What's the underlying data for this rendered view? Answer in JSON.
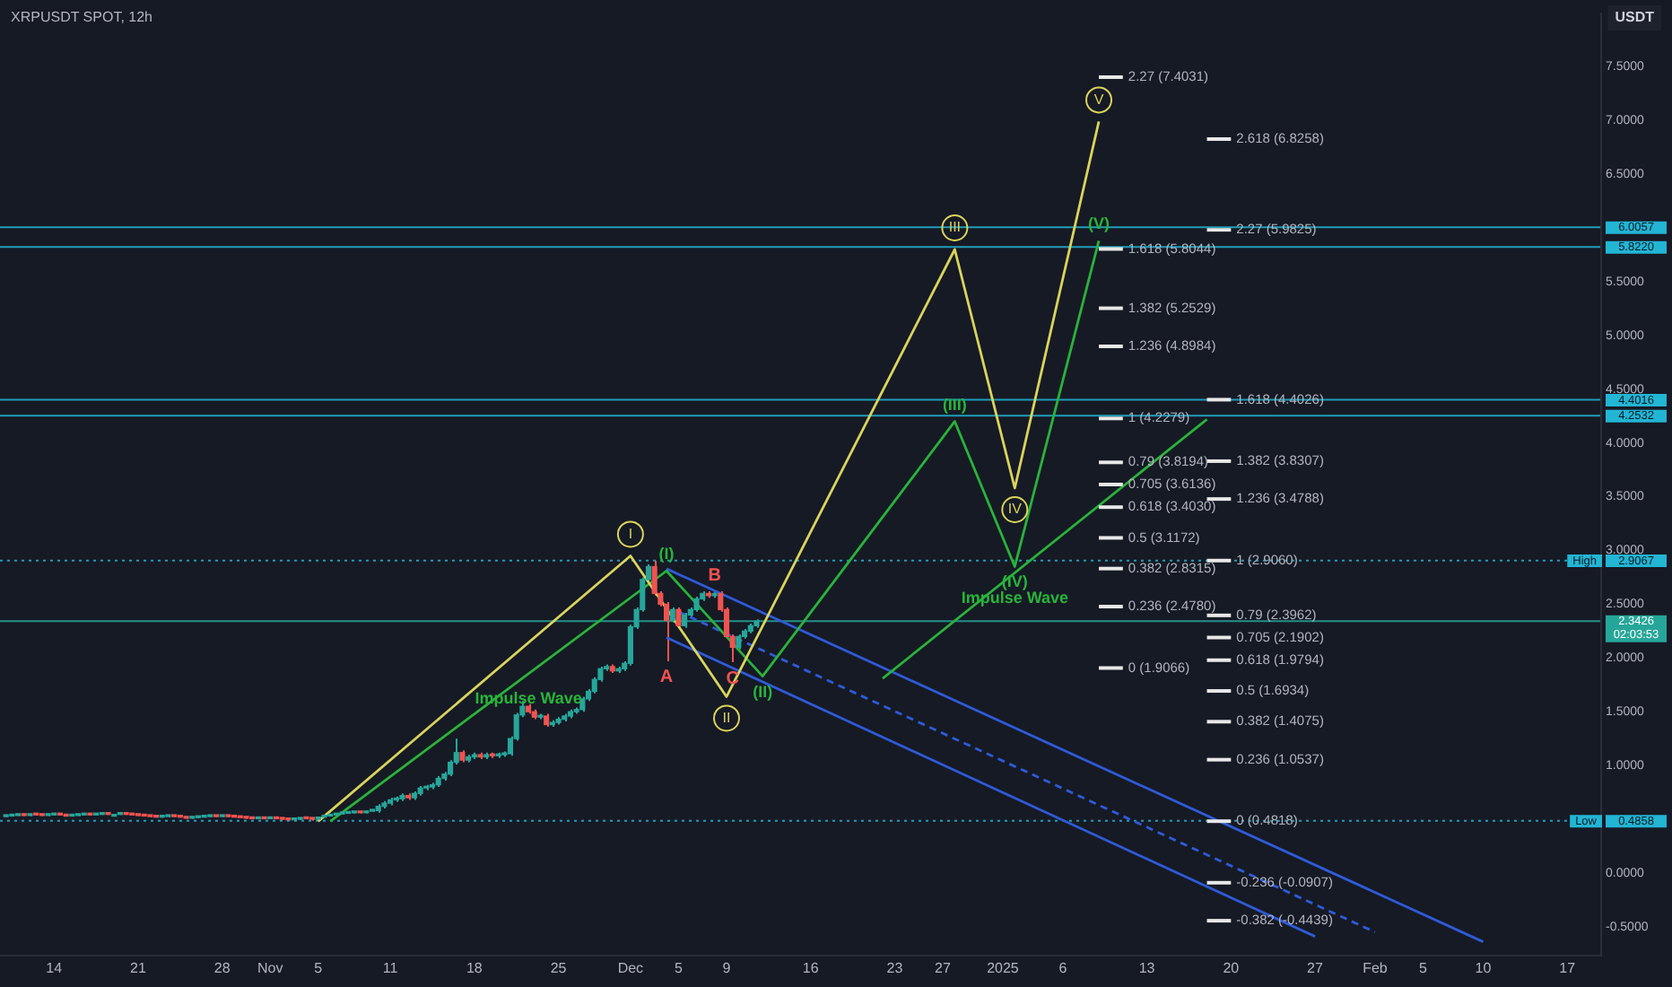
{
  "chart_data": {
    "type": "candlestick",
    "title": "XRPUSDT SPOT, 12h",
    "ylabel": "USDT",
    "x": [
      "2024-10-10T00:00",
      "2024-10-10T12:00",
      "2024-10-11T00:00",
      "2024-10-11T12:00",
      "2024-10-12T00:00",
      "2024-10-12T12:00",
      "2024-10-13T00:00",
      "2024-10-13T12:00",
      "2024-10-14T00:00",
      "2024-10-14T12:00",
      "2024-10-15T00:00",
      "2024-10-15T12:00",
      "2024-10-16T00:00",
      "2024-10-16T12:00",
      "2024-10-17T00:00",
      "2024-10-17T12:00",
      "2024-10-18T00:00",
      "2024-10-18T12:00",
      "2024-10-19T00:00",
      "2024-10-19T12:00",
      "2024-10-20T00:00",
      "2024-10-20T12:00",
      "2024-10-21T00:00",
      "2024-10-21T12:00",
      "2024-10-22T00:00",
      "2024-10-22T12:00",
      "2024-10-23T00:00",
      "2024-10-23T12:00",
      "2024-10-24T00:00",
      "2024-10-24T12:00",
      "2024-10-25T00:00",
      "2024-10-25T12:00",
      "2024-10-26T00:00",
      "2024-10-26T12:00",
      "2024-10-27T00:00",
      "2024-10-27T12:00",
      "2024-10-28T00:00",
      "2024-10-28T12:00",
      "2024-10-29T00:00",
      "2024-10-29T12:00",
      "2024-10-30T00:00",
      "2024-10-30T12:00",
      "2024-10-31T00:00",
      "2024-10-31T12:00",
      "2024-11-01T00:00",
      "2024-11-01T12:00",
      "2024-11-02T00:00",
      "2024-11-02T12:00",
      "2024-11-03T00:00",
      "2024-11-03T12:00",
      "2024-11-04T00:00",
      "2024-11-04T12:00",
      "2024-11-05T00:00",
      "2024-11-05T12:00",
      "2024-11-06T00:00",
      "2024-11-06T12:00",
      "2024-11-07T00:00",
      "2024-11-07T12:00",
      "2024-11-08T00:00",
      "2024-11-08T12:00",
      "2024-11-09T00:00",
      "2024-11-09T12:00",
      "2024-11-10T00:00",
      "2024-11-10T12:00",
      "2024-11-11T00:00",
      "2024-11-11T12:00",
      "2024-11-12T00:00",
      "2024-11-12T12:00",
      "2024-11-13T00:00",
      "2024-11-13T12:00",
      "2024-11-14T00:00",
      "2024-11-14T12:00",
      "2024-11-15T00:00",
      "2024-11-15T12:00",
      "2024-11-16T00:00",
      "2024-11-16T12:00",
      "2024-11-17T00:00",
      "2024-11-17T12:00",
      "2024-11-18T00:00",
      "2024-11-18T12:00",
      "2024-11-19T00:00",
      "2024-11-19T12:00",
      "2024-11-20T00:00",
      "2024-11-20T12:00",
      "2024-11-21T00:00",
      "2024-11-21T12:00",
      "2024-11-22T00:00",
      "2024-11-22T12:00",
      "2024-11-23T00:00",
      "2024-11-23T12:00",
      "2024-11-24T00:00",
      "2024-11-24T12:00",
      "2024-11-25T00:00",
      "2024-11-25T12:00",
      "2024-11-26T00:00",
      "2024-11-26T12:00",
      "2024-11-27T00:00",
      "2024-11-27T12:00",
      "2024-11-28T00:00",
      "2024-11-28T12:00",
      "2024-11-29T00:00",
      "2024-11-29T12:00",
      "2024-11-30T00:00",
      "2024-11-30T12:00",
      "2024-12-01T00:00",
      "2024-12-01T12:00",
      "2024-12-02T00:00",
      "2024-12-02T12:00",
      "2024-12-03T00:00",
      "2024-12-03T12:00",
      "2024-12-04T00:00",
      "2024-12-04T12:00",
      "2024-12-05T00:00",
      "2024-12-05T12:00",
      "2024-12-06T00:00",
      "2024-12-06T12:00",
      "2024-12-07T00:00",
      "2024-12-07T12:00",
      "2024-12-08T00:00",
      "2024-12-08T12:00",
      "2024-12-09T00:00",
      "2024-12-09T12:00",
      "2024-12-10T00:00",
      "2024-12-10T12:00",
      "2024-12-11T00:00",
      "2024-12-11T12:00"
    ],
    "ohlc": [
      [
        0.525,
        0.535,
        0.52,
        0.53
      ],
      [
        0.53,
        0.54,
        0.525,
        0.535
      ],
      [
        0.535,
        0.545,
        0.53,
        0.54
      ],
      [
        0.54,
        0.545,
        0.53,
        0.535
      ],
      [
        0.535,
        0.55,
        0.53,
        0.545
      ],
      [
        0.545,
        0.55,
        0.535,
        0.54
      ],
      [
        0.54,
        0.545,
        0.53,
        0.535
      ],
      [
        0.535,
        0.545,
        0.53,
        0.54
      ],
      [
        0.54,
        0.55,
        0.535,
        0.545
      ],
      [
        0.545,
        0.55,
        0.535,
        0.54
      ],
      [
        0.54,
        0.545,
        0.525,
        0.53
      ],
      [
        0.53,
        0.54,
        0.525,
        0.535
      ],
      [
        0.535,
        0.545,
        0.53,
        0.54
      ],
      [
        0.54,
        0.55,
        0.535,
        0.545
      ],
      [
        0.545,
        0.55,
        0.535,
        0.54
      ],
      [
        0.54,
        0.55,
        0.535,
        0.545
      ],
      [
        0.545,
        0.555,
        0.54,
        0.55
      ],
      [
        0.55,
        0.555,
        0.54,
        0.545
      ],
      [
        0.545,
        0.55,
        0.54,
        0.545
      ],
      [
        0.545,
        0.555,
        0.54,
        0.55
      ],
      [
        0.55,
        0.555,
        0.54,
        0.545
      ],
      [
        0.545,
        0.55,
        0.535,
        0.54
      ],
      [
        0.54,
        0.545,
        0.53,
        0.535
      ],
      [
        0.535,
        0.54,
        0.525,
        0.53
      ],
      [
        0.53,
        0.535,
        0.52,
        0.525
      ],
      [
        0.525,
        0.53,
        0.515,
        0.52
      ],
      [
        0.52,
        0.53,
        0.515,
        0.525
      ],
      [
        0.525,
        0.535,
        0.52,
        0.53
      ],
      [
        0.53,
        0.535,
        0.52,
        0.525
      ],
      [
        0.525,
        0.53,
        0.515,
        0.52
      ],
      [
        0.52,
        0.525,
        0.505,
        0.51
      ],
      [
        0.51,
        0.52,
        0.505,
        0.515
      ],
      [
        0.515,
        0.525,
        0.51,
        0.52
      ],
      [
        0.52,
        0.53,
        0.515,
        0.525
      ],
      [
        0.525,
        0.535,
        0.52,
        0.53
      ],
      [
        0.53,
        0.535,
        0.52,
        0.525
      ],
      [
        0.525,
        0.535,
        0.52,
        0.53
      ],
      [
        0.53,
        0.535,
        0.52,
        0.525
      ],
      [
        0.525,
        0.53,
        0.515,
        0.52
      ],
      [
        0.52,
        0.525,
        0.51,
        0.515
      ],
      [
        0.515,
        0.52,
        0.505,
        0.51
      ],
      [
        0.51,
        0.515,
        0.5,
        0.505
      ],
      [
        0.505,
        0.515,
        0.5,
        0.51
      ],
      [
        0.51,
        0.515,
        0.5,
        0.505
      ],
      [
        0.505,
        0.515,
        0.5,
        0.51
      ],
      [
        0.51,
        0.515,
        0.5,
        0.505
      ],
      [
        0.505,
        0.51,
        0.495,
        0.5
      ],
      [
        0.5,
        0.505,
        0.49,
        0.495
      ],
      [
        0.495,
        0.505,
        0.49,
        0.5
      ],
      [
        0.5,
        0.515,
        0.495,
        0.51
      ],
      [
        0.51,
        0.515,
        0.5,
        0.505
      ],
      [
        0.505,
        0.51,
        0.4858,
        0.5
      ],
      [
        0.5,
        0.525,
        0.495,
        0.52
      ],
      [
        0.52,
        0.535,
        0.515,
        0.53
      ],
      [
        0.53,
        0.545,
        0.525,
        0.54
      ],
      [
        0.54,
        0.555,
        0.535,
        0.55
      ],
      [
        0.55,
        0.56,
        0.545,
        0.555
      ],
      [
        0.555,
        0.565,
        0.55,
        0.56
      ],
      [
        0.56,
        0.57,
        0.555,
        0.565
      ],
      [
        0.565,
        0.57,
        0.555,
        0.56
      ],
      [
        0.56,
        0.58,
        0.555,
        0.575
      ],
      [
        0.575,
        0.585,
        0.57,
        0.58
      ],
      [
        0.58,
        0.64,
        0.56,
        0.62
      ],
      [
        0.62,
        0.67,
        0.6,
        0.65
      ],
      [
        0.65,
        0.7,
        0.63,
        0.68
      ],
      [
        0.68,
        0.71,
        0.66,
        0.69
      ],
      [
        0.69,
        0.74,
        0.67,
        0.72
      ],
      [
        0.72,
        0.74,
        0.68,
        0.7
      ],
      [
        0.7,
        0.76,
        0.68,
        0.74
      ],
      [
        0.74,
        0.81,
        0.72,
        0.79
      ],
      [
        0.79,
        0.82,
        0.77,
        0.8
      ],
      [
        0.8,
        0.84,
        0.78,
        0.82
      ],
      [
        0.82,
        0.9,
        0.8,
        0.88
      ],
      [
        0.88,
        0.94,
        0.86,
        0.92
      ],
      [
        0.92,
        1.05,
        0.9,
        1.03
      ],
      [
        1.03,
        1.25,
        1.01,
        1.12
      ],
      [
        1.12,
        1.14,
        1.03,
        1.05
      ],
      [
        1.05,
        1.1,
        1.03,
        1.08
      ],
      [
        1.08,
        1.12,
        1.06,
        1.1
      ],
      [
        1.1,
        1.12,
        1.06,
        1.08
      ],
      [
        1.08,
        1.12,
        1.06,
        1.1
      ],
      [
        1.1,
        1.12,
        1.07,
        1.09
      ],
      [
        1.09,
        1.12,
        1.07,
        1.1
      ],
      [
        1.1,
        1.13,
        1.08,
        1.11
      ],
      [
        1.11,
        1.27,
        1.09,
        1.25
      ],
      [
        1.25,
        1.49,
        1.23,
        1.47
      ],
      [
        1.47,
        1.6,
        1.45,
        1.55
      ],
      [
        1.55,
        1.57,
        1.48,
        1.5
      ],
      [
        1.5,
        1.52,
        1.43,
        1.45
      ],
      [
        1.45,
        1.48,
        1.43,
        1.46
      ],
      [
        1.46,
        1.48,
        1.36,
        1.38
      ],
      [
        1.38,
        1.42,
        1.36,
        1.4
      ],
      [
        1.4,
        1.45,
        1.38,
        1.43
      ],
      [
        1.43,
        1.48,
        1.41,
        1.46
      ],
      [
        1.46,
        1.52,
        1.44,
        1.5
      ],
      [
        1.5,
        1.54,
        1.48,
        1.52
      ],
      [
        1.52,
        1.64,
        1.5,
        1.62
      ],
      [
        1.62,
        1.71,
        1.6,
        1.69
      ],
      [
        1.69,
        1.82,
        1.67,
        1.8
      ],
      [
        1.8,
        1.92,
        1.78,
        1.9
      ],
      [
        1.9,
        1.94,
        1.88,
        1.92
      ],
      [
        1.92,
        1.94,
        1.86,
        1.88
      ],
      [
        1.88,
        1.92,
        1.86,
        1.9
      ],
      [
        1.9,
        1.97,
        1.88,
        1.95
      ],
      [
        1.95,
        2.31,
        1.93,
        2.29
      ],
      [
        2.29,
        2.47,
        2.27,
        2.45
      ],
      [
        2.45,
        2.75,
        2.43,
        2.73
      ],
      [
        2.73,
        2.87,
        2.71,
        2.85
      ],
      [
        2.85,
        2.9067,
        2.58,
        2.6
      ],
      [
        2.6,
        2.62,
        2.48,
        2.5
      ],
      [
        2.5,
        2.52,
        1.97,
        2.35
      ],
      [
        2.35,
        2.47,
        2.33,
        2.45
      ],
      [
        2.45,
        2.47,
        2.28,
        2.3
      ],
      [
        2.3,
        2.42,
        2.28,
        2.4
      ],
      [
        2.4,
        2.47,
        2.38,
        2.45
      ],
      [
        2.45,
        2.57,
        2.43,
        2.55
      ],
      [
        2.55,
        2.62,
        2.53,
        2.6
      ],
      [
        2.6,
        2.62,
        2.56,
        2.58
      ],
      [
        2.58,
        2.62,
        2.56,
        2.6
      ],
      [
        2.6,
        2.62,
        2.43,
        2.45
      ],
      [
        2.45,
        2.47,
        2.18,
        2.2
      ],
      [
        2.2,
        2.22,
        1.96,
        2.1
      ],
      [
        2.1,
        2.22,
        2.08,
        2.2
      ],
      [
        2.2,
        2.27,
        2.18,
        2.25
      ],
      [
        2.25,
        2.32,
        2.23,
        2.3
      ],
      [
        2.3,
        2.36,
        2.28,
        2.3426
      ]
    ],
    "colors": [
      "#26a69a",
      "#26a69a",
      "#26a69a",
      "#ef5350",
      "#26a69a",
      "#ef5350",
      "#ef5350",
      "#26a69a",
      "#26a69a",
      "#ef5350",
      "#ef5350",
      "#26a69a",
      "#26a69a",
      "#26a69a",
      "#ef5350",
      "#26a69a",
      "#26a69a",
      "#ef5350",
      "#26a69a",
      "#26a69a",
      "#ef5350",
      "#ef5350",
      "#ef5350",
      "#ef5350",
      "#ef5350",
      "#ef5350",
      "#26a69a",
      "#26a69a",
      "#ef5350",
      "#ef5350",
      "#ef5350",
      "#26a69a",
      "#26a69a",
      "#26a69a",
      "#26a69a",
      "#ef5350",
      "#26a69a",
      "#ef5350",
      "#ef5350",
      "#ef5350",
      "#ef5350",
      "#ef5350",
      "#26a69a",
      "#ef5350",
      "#26a69a",
      "#ef5350",
      "#ef5350",
      "#ef5350",
      "#26a69a",
      "#26a69a",
      "#ef5350",
      "#ef5350",
      "#26a69a",
      "#26a69a",
      "#26a69a",
      "#26a69a",
      "#26a69a",
      "#26a69a",
      "#26a69a",
      "#ef5350",
      "#26a69a",
      "#26a69a",
      "#26a69a",
      "#26a69a",
      "#26a69a",
      "#26a69a",
      "#26a69a",
      "#ef5350",
      "#26a69a",
      "#26a69a",
      "#26a69a",
      "#26a69a",
      "#26a69a",
      "#26a69a",
      "#26a69a",
      "#26a69a",
      "#ef5350",
      "#26a69a",
      "#26a69a",
      "#ef5350",
      "#26a69a",
      "#ef5350",
      "#26a69a",
      "#26a69a",
      "#26a69a",
      "#26a69a",
      "#26a69a",
      "#ef5350",
      "#ef5350",
      "#26a69a",
      "#ef5350",
      "#26a69a",
      "#26a69a",
      "#26a69a",
      "#26a69a",
      "#26a69a",
      "#26a69a",
      "#26a69a",
      "#26a69a",
      "#26a69a",
      "#26a69a",
      "#ef5350",
      "#26a69a",
      "#26a69a",
      "#26a69a",
      "#26a69a",
      "#26a69a",
      "#26a69a",
      "#ef5350",
      "#ef5350",
      "#ef5350",
      "#26a69a",
      "#ef5350",
      "#26a69a",
      "#26a69a",
      "#26a69a",
      "#26a69a",
      "#ef5350",
      "#26a69a",
      "#ef5350",
      "#ef5350",
      "#ef5350",
      "#26a69a",
      "#26a69a",
      "#26a69a",
      "#26a69a"
    ],
    "series": [
      {
        "type": "line",
        "color": "#d9d45b",
        "x": [
          "2024-11-05",
          "2024-12-01",
          "2024-12-09",
          "2024-12-28",
          "2025-01-02",
          "2025-01-09"
        ],
        "values": [
          0.48,
          2.95,
          1.64,
          5.8,
          3.58,
          6.99
        ],
        "value_labels": [
          null,
          "I",
          "II",
          "III",
          "IV",
          "V"
        ]
      },
      {
        "type": "line",
        "color": "#29b33a",
        "x": [
          "2024-11-06",
          "2024-12-04",
          "2024-12-12",
          "2024-12-28",
          "2025-01-02",
          "2025-01-09"
        ],
        "values": [
          0.48,
          2.81,
          1.83,
          4.2,
          2.85,
          5.88
        ],
        "value_labels": [
          null,
          "(I)",
          "(II)",
          "(III)",
          "(IV)",
          "(V)"
        ]
      },
      {
        "type": "line",
        "color": "#e8e8e8",
        "x": [
          "2025-01-09",
          "2025-01-11"
        ],
        "values": [
          7.4031,
          7.4031
        ],
        "value_labels": [
          null,
          "2.27 (7.4031)"
        ]
      },
      {
        "type": "line",
        "color": "#e8e8e8",
        "x": [
          "2025-01-09",
          "2025-01-11"
        ],
        "values": [
          5.8044,
          5.8044
        ],
        "value_labels": [
          null,
          "1.618 (5.8044)"
        ]
      },
      {
        "type": "line",
        "color": "#e8e8e8",
        "x": [
          "2025-01-09",
          "2025-01-11"
        ],
        "values": [
          5.2529,
          5.2529
        ],
        "value_labels": [
          null,
          "1.382 (5.2529)"
        ]
      },
      {
        "type": "line",
        "color": "#e8e8e8",
        "x": [
          "2025-01-09",
          "2025-01-11"
        ],
        "values": [
          4.8984,
          4.8984
        ],
        "value_labels": [
          null,
          "1.236 (4.8984)"
        ]
      },
      {
        "type": "line",
        "color": "#e8e8e8",
        "x": [
          "2025-01-09",
          "2025-01-11"
        ],
        "values": [
          4.2279,
          4.2279
        ],
        "value_labels": [
          null,
          "1 (4.2279)"
        ]
      },
      {
        "type": "line",
        "color": "#e8e8e8",
        "x": [
          "2025-01-09",
          "2025-01-11"
        ],
        "values": [
          3.8194,
          3.8194
        ],
        "value_labels": [
          null,
          "0.79 (3.8194)"
        ]
      },
      {
        "type": "line",
        "color": "#e8e8e8",
        "x": [
          "2025-01-09",
          "2025-01-11"
        ],
        "values": [
          3.6136,
          3.6136
        ],
        "value_labels": [
          null,
          "0.705 (3.6136)"
        ]
      },
      {
        "type": "line",
        "color": "#e8e8e8",
        "x": [
          "2025-01-09",
          "2025-01-11"
        ],
        "values": [
          3.403,
          3.403
        ],
        "value_labels": [
          null,
          "0.618 (3.4030)"
        ]
      },
      {
        "type": "line",
        "color": "#e8e8e8",
        "x": [
          "2025-01-09",
          "2025-01-11"
        ],
        "values": [
          3.1172,
          3.1172
        ],
        "value_labels": [
          null,
          "0.5 (3.1172)"
        ]
      },
      {
        "type": "line",
        "color": "#e8e8e8",
        "x": [
          "2025-01-09",
          "2025-01-11"
        ],
        "values": [
          2.8315,
          2.8315
        ],
        "value_labels": [
          null,
          "0.382 (2.8315)"
        ]
      },
      {
        "type": "line",
        "color": "#e8e8e8",
        "x": [
          "2025-01-09",
          "2025-01-11"
        ],
        "values": [
          2.478,
          2.478
        ],
        "value_labels": [
          null,
          "0.236 (2.4780)"
        ]
      },
      {
        "type": "line",
        "color": "#e8e8e8",
        "x": [
          "2025-01-09",
          "2025-01-11"
        ],
        "values": [
          1.9066,
          1.9066
        ],
        "value_labels": [
          null,
          "0 (1.9066)"
        ]
      },
      {
        "type": "line",
        "color": "#e8e8e8",
        "x": [
          "2025-01-18",
          "2025-01-20"
        ],
        "values": [
          6.8258,
          6.8258
        ],
        "value_labels": [
          null,
          "2.618 (6.8258)"
        ]
      },
      {
        "type": "line",
        "color": "#e8e8e8",
        "x": [
          "2025-01-18",
          "2025-01-20"
        ],
        "values": [
          5.9825,
          5.9825
        ],
        "value_labels": [
          null,
          "2.27 (5.9825)"
        ]
      },
      {
        "type": "line",
        "color": "#e8e8e8",
        "x": [
          "2025-01-18",
          "2025-01-20"
        ],
        "values": [
          4.4026,
          4.4026
        ],
        "value_labels": [
          null,
          "1.618 (4.4026)"
        ]
      },
      {
        "type": "line",
        "color": "#e8e8e8",
        "x": [
          "2025-01-18",
          "2025-01-20"
        ],
        "values": [
          3.8307,
          3.8307
        ],
        "value_labels": [
          null,
          "1.382 (3.8307)"
        ]
      },
      {
        "type": "line",
        "color": "#e8e8e8",
        "x": [
          "2025-01-18",
          "2025-01-20"
        ],
        "values": [
          3.4788,
          3.4788
        ],
        "value_labels": [
          null,
          "1.236 (3.4788)"
        ]
      },
      {
        "type": "line",
        "color": "#e8e8e8",
        "x": [
          "2025-01-18",
          "2025-01-20"
        ],
        "values": [
          2.906,
          2.906
        ],
        "value_labels": [
          null,
          "1 (2.9060)"
        ]
      },
      {
        "type": "line",
        "color": "#e8e8e8",
        "x": [
          "2025-01-18",
          "2025-01-20"
        ],
        "values": [
          2.3962,
          2.3962
        ],
        "value_labels": [
          null,
          "0.79 (2.3962)"
        ]
      },
      {
        "type": "line",
        "color": "#e8e8e8",
        "x": [
          "2025-01-18",
          "2025-01-20"
        ],
        "values": [
          2.1902,
          2.1902
        ],
        "value_labels": [
          null,
          "0.705 (2.1902)"
        ]
      },
      {
        "type": "line",
        "color": "#e8e8e8",
        "x": [
          "2025-01-18",
          "2025-01-20"
        ],
        "values": [
          1.9794,
          1.9794
        ],
        "value_labels": [
          null,
          "0.618 (1.9794)"
        ]
      },
      {
        "type": "line",
        "color": "#e8e8e8",
        "x": [
          "2025-01-18",
          "2025-01-20"
        ],
        "values": [
          1.6934,
          1.6934
        ],
        "value_labels": [
          null,
          "0.5 (1.6934)"
        ]
      },
      {
        "type": "line",
        "color": "#e8e8e8",
        "x": [
          "2025-01-18",
          "2025-01-20"
        ],
        "values": [
          1.4075,
          1.4075
        ],
        "value_labels": [
          null,
          "0.382 (1.4075)"
        ]
      },
      {
        "type": "line",
        "color": "#e8e8e8",
        "x": [
          "2025-01-18",
          "2025-01-20"
        ],
        "values": [
          1.0537,
          1.0537
        ],
        "value_labels": [
          null,
          "0.236 (1.0537)"
        ]
      },
      {
        "type": "line",
        "color": "#e8e8e8",
        "x": [
          "2025-01-18",
          "2025-01-20"
        ],
        "values": [
          0.4818,
          0.4818
        ],
        "value_labels": [
          null,
          "0 (0.4818)"
        ]
      },
      {
        "type": "line",
        "color": "#e8e8e8",
        "x": [
          "2025-01-18",
          "2025-01-20"
        ],
        "values": [
          -0.0907,
          -0.0907
        ],
        "value_labels": [
          null,
          "-0.236 (-0.0907)"
        ]
      },
      {
        "type": "line",
        "color": "#e8e8e8",
        "x": [
          "2025-01-18",
          "2025-01-20"
        ],
        "values": [
          -0.4439,
          -0.4439
        ],
        "value_labels": [
          null,
          "-0.382 (-0.4439)"
        ]
      },
      {
        "type": "line",
        "color": "#29b33a",
        "x": [
          "2024-12-22",
          "2025-01-18"
        ],
        "values": [
          1.81,
          4.22
        ]
      },
      {
        "type": "line",
        "color": "#2f5bd8",
        "x": [
          "2024-12-04",
          "2025-02-10"
        ],
        "values": [
          2.83,
          -0.64
        ]
      },
      {
        "type": "line",
        "color": "#2f5bd8",
        "x": [
          "2024-12-04",
          "2025-01-27"
        ],
        "values": [
          2.19,
          -0.59
        ]
      },
      {
        "type": "line",
        "color": "#2f5bd8",
        "line_style": "dashed",
        "x": [
          "2024-12-05",
          "2025-02-01"
        ],
        "values": [
          2.43,
          -0.55
        ]
      }
    ],
    "xlim": [
      "2024-10-09T12:00",
      "2025-02-19T18:00"
    ],
    "xticks": [
      {
        "value": "2024-10-14",
        "label": "14"
      },
      {
        "value": "2024-10-21",
        "label": "21"
      },
      {
        "value": "2024-10-28",
        "label": "28"
      },
      {
        "value": "2024-11-01",
        "label": "Nov"
      },
      {
        "value": "2024-11-05",
        "label": "5"
      },
      {
        "value": "2024-11-11",
        "label": "11"
      },
      {
        "value": "2024-11-18",
        "label": "18"
      },
      {
        "value": "2024-11-25",
        "label": "25"
      },
      {
        "value": "2024-12-01",
        "label": "Dec"
      },
      {
        "value": "2024-12-05",
        "label": "5"
      },
      {
        "value": "2024-12-09",
        "label": "9"
      },
      {
        "value": "2024-12-16",
        "label": "16"
      },
      {
        "value": "2024-12-23",
        "label": "23"
      },
      {
        "value": "2024-12-27",
        "label": "27"
      },
      {
        "value": "2025-01-01",
        "label": "2025"
      },
      {
        "value": "2025-01-06",
        "label": "6"
      },
      {
        "value": "2025-01-13",
        "label": "13"
      },
      {
        "value": "2025-01-20",
        "label": "20"
      },
      {
        "value": "2025-01-27",
        "label": "27"
      },
      {
        "value": "2025-02-01",
        "label": "Feb"
      },
      {
        "value": "2025-02-05",
        "label": "5"
      },
      {
        "value": "2025-02-10",
        "label": "10"
      },
      {
        "value": "2025-02-17",
        "label": "17"
      }
    ],
    "ylim": [
      -0.76,
      8.0
    ],
    "yticks": [
      {
        "value": -0.5,
        "label": "-0.5000"
      },
      {
        "value": 0,
        "label": "0.0000"
      },
      {
        "value": 0.5,
        "label": null
      },
      {
        "value": 1,
        "label": "1.0000"
      },
      {
        "value": 1.5,
        "label": "1.5000"
      },
      {
        "value": 2,
        "label": "2.0000"
      },
      {
        "value": 2.5,
        "label": "2.5000"
      },
      {
        "value": 3,
        "label": "3.0000"
      },
      {
        "value": 3.5,
        "label": "3.5000"
      },
      {
        "value": 4,
        "label": "4.0000"
      },
      {
        "value": 4.5,
        "label": "4.5000"
      },
      {
        "value": 5,
        "label": "5.0000"
      },
      {
        "value": 5.5,
        "label": "5.5000"
      },
      {
        "value": 6,
        "label": null
      },
      {
        "value": 6.5,
        "label": "6.5000"
      },
      {
        "value": 7,
        "label": "7.0000"
      },
      {
        "value": 7.5,
        "label": "7.5000"
      }
    ],
    "ref_lines": [
      {
        "axis": "y",
        "value": 6.0057,
        "label": "6.0057",
        "color": "#22b5d4",
        "line_style": "solid"
      },
      {
        "axis": "y",
        "value": 5.822,
        "label": "5.8220",
        "color": "#22b5d4",
        "line_style": "solid"
      },
      {
        "axis": "y",
        "value": 4.4016,
        "label": "4.4016",
        "color": "#22b5d4",
        "line_style": "solid"
      },
      {
        "axis": "y",
        "value": 4.2532,
        "label": "4.2532",
        "color": "#22b5d4",
        "line_style": "solid"
      },
      {
        "axis": "y",
        "value": 2.9067,
        "label": "High 2.9067",
        "color": "#22b5d4",
        "line_style": "dotted"
      },
      {
        "axis": "y",
        "value": 0.4858,
        "label": "Low 0.4858",
        "color": "#22b5d4",
        "line_style": "dotted"
      },
      {
        "axis": "y",
        "value": 2.3426,
        "label": "2.3426 02:03:53",
        "color": "#26a69a",
        "line_style": "solid"
      }
    ],
    "annotations": [
      {
        "text": "A",
        "x": "2024-12-04T00:00",
        "y": 1.97
      },
      {
        "text": "B",
        "x": "2024-12-08T00:00",
        "y": 2.62
      },
      {
        "text": "C",
        "x": "2024-12-09T12:00",
        "y": 1.96
      },
      {
        "text": "Impulse Wave",
        "x": "2024-11-22T12:00",
        "y": 1.85
      },
      {
        "text": "Impulse Wave",
        "x": "2025-01-02",
        "y": 2.79
      }
    ],
    "grid": false,
    "legend": false
  }
}
